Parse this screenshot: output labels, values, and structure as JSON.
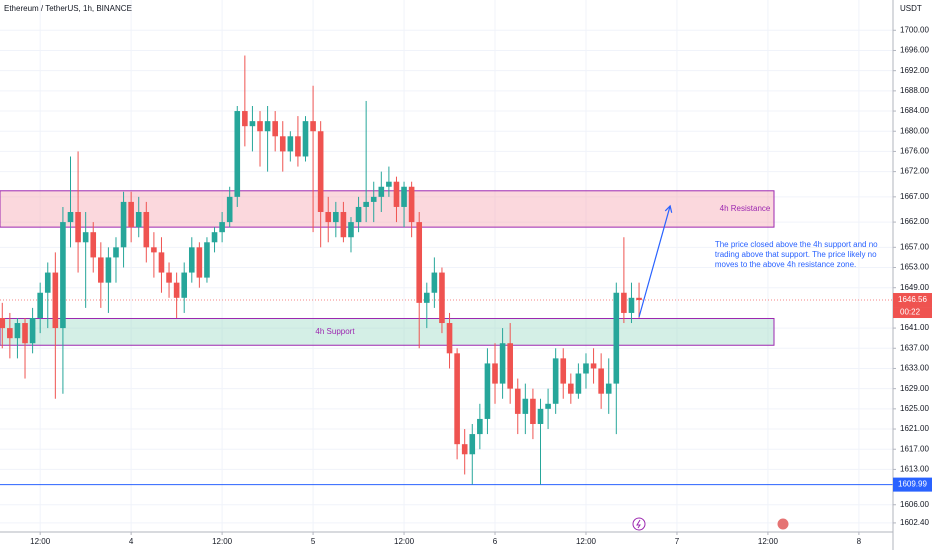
{
  "chart_data": {
    "type": "candlestick",
    "title": "Ethereum / TetherUS, 1h, BINANCE",
    "y_axis_label": "USDT",
    "up_color": "#26a69a",
    "down_color": "#ef5350",
    "grid": true,
    "open": [
      1643,
      1641,
      1639,
      1642,
      1638,
      1643,
      1648,
      1652,
      1641,
      1662,
      1664,
      1658,
      1660,
      1655,
      1650,
      1655,
      1657,
      1666,
      1661,
      1664,
      1657,
      1656,
      1652,
      1650,
      1647,
      1652,
      1657,
      1651,
      1658,
      1660,
      1662,
      1667,
      1684,
      1681,
      1682,
      1680,
      1682,
      1679,
      1676,
      1679,
      1675,
      1682,
      1680,
      1664,
      1662,
      1664,
      1659,
      1662,
      1665,
      1666,
      1667,
      1669,
      1670,
      1665,
      1669,
      1662,
      1646,
      1648,
      1652,
      1642,
      1636,
      1618,
      1616,
      1620,
      1623,
      1634,
      1630,
      1638,
      1629,
      1624,
      1627,
      1622,
      1625,
      1626,
      1635,
      1630,
      1628,
      1632,
      1634,
      1633,
      1628,
      1630,
      1648,
      1644,
      1647
    ],
    "high": [
      1646,
      1644,
      1643,
      1643,
      1645,
      1650,
      1654,
      1656,
      1665,
      1675,
      1676,
      1664,
      1662,
      1658,
      1657,
      1659,
      1668,
      1668,
      1667,
      1666,
      1660,
      1659,
      1654,
      1652,
      1654,
      1659,
      1658,
      1659,
      1661,
      1664,
      1669,
      1685,
      1695,
      1685,
      1684,
      1685,
      1684,
      1682,
      1680,
      1683,
      1683,
      1689,
      1682,
      1667,
      1666,
      1666,
      1663,
      1667,
      1686,
      1670,
      1672,
      1673,
      1671,
      1670,
      1670,
      1664,
      1650,
      1655,
      1653,
      1644,
      1637,
      1621,
      1622,
      1626,
      1637,
      1638,
      1641,
      1642,
      1631,
      1630,
      1629,
      1627,
      1629,
      1637,
      1637,
      1632,
      1634,
      1636,
      1637,
      1636,
      1635,
      1650,
      1659,
      1650,
      1650
    ],
    "low": [
      1637,
      1635,
      1635,
      1631,
      1636,
      1640,
      1641,
      1627,
      1628,
      1657,
      1652,
      1645,
      1652,
      1645,
      1644,
      1650,
      1653,
      1658,
      1659,
      1654,
      1651,
      1648,
      1647,
      1643,
      1644,
      1650,
      1649,
      1650,
      1656,
      1658,
      1661,
      1665,
      1677,
      1676,
      1673,
      1672,
      1676,
      1672,
      1674,
      1673,
      1674,
      1660,
      1657,
      1658,
      1659,
      1658,
      1656,
      1660,
      1662,
      1662,
      1664,
      1667,
      1662,
      1661,
      1659,
      1637,
      1641,
      1645,
      1640,
      1633,
      1615,
      1612,
      1610,
      1617,
      1620,
      1626,
      1627,
      1626,
      1620,
      1620,
      1619,
      1610,
      1621,
      1624,
      1627,
      1626,
      1627,
      1629,
      1630,
      1625,
      1624,
      1620,
      1642,
      1642,
      1643
    ],
    "close": [
      1641,
      1639,
      1642,
      1638,
      1643,
      1648,
      1652,
      1641,
      1662,
      1664,
      1658,
      1660,
      1655,
      1650,
      1655,
      1657,
      1666,
      1661,
      1664,
      1657,
      1656,
      1652,
      1650,
      1647,
      1652,
      1657,
      1651,
      1658,
      1660,
      1662,
      1667,
      1684,
      1681,
      1682,
      1680,
      1682,
      1679,
      1676,
      1679,
      1675,
      1682,
      1680,
      1664,
      1662,
      1664,
      1659,
      1662,
      1665,
      1666,
      1667,
      1669,
      1670,
      1665,
      1669,
      1662,
      1646,
      1648,
      1652,
      1642,
      1636,
      1618,
      1616,
      1620,
      1623,
      1634,
      1630,
      1638,
      1629,
      1624,
      1627,
      1622,
      1625,
      1626,
      1635,
      1630,
      1628,
      1632,
      1634,
      1633,
      1628,
      1630,
      1648,
      1644,
      1647,
      1646.56
    ],
    "xlim": [
      -0.3,
      117.5
    ],
    "ylim": [
      1600.6,
      1706.0
    ],
    "xticks": [
      {
        "value": 5,
        "label": "12:00"
      },
      {
        "value": 17,
        "label": "4"
      },
      {
        "value": 29,
        "label": "12:00"
      },
      {
        "value": 41,
        "label": "5"
      },
      {
        "value": 53,
        "label": "12:00"
      },
      {
        "value": 65,
        "label": "6"
      },
      {
        "value": 77,
        "label": "12:00"
      },
      {
        "value": 89,
        "label": "7"
      },
      {
        "value": 101,
        "label": "12:00"
      },
      {
        "value": 113,
        "label": "8"
      }
    ],
    "yticks": [
      {
        "value": 1700,
        "label": "1700.00"
      },
      {
        "value": 1696,
        "label": "1696.00"
      },
      {
        "value": 1692,
        "label": "1692.00"
      },
      {
        "value": 1688,
        "label": "1688.00"
      },
      {
        "value": 1684,
        "label": "1684.00"
      },
      {
        "value": 1680,
        "label": "1680.00"
      },
      {
        "value": 1676,
        "label": "1676.00"
      },
      {
        "value": 1672,
        "label": "1672.00"
      },
      {
        "value": 1667,
        "label": "1667.00"
      },
      {
        "value": 1662,
        "label": "1662.00"
      },
      {
        "value": 1657,
        "label": "1657.00"
      },
      {
        "value": 1653,
        "label": "1653.00"
      },
      {
        "value": 1649,
        "label": "1649.00"
      },
      {
        "value": 1641,
        "label": "1641.00"
      },
      {
        "value": 1637,
        "label": "1637.00"
      },
      {
        "value": 1633,
        "label": "1633.00"
      },
      {
        "value": 1629,
        "label": "1629.00"
      },
      {
        "value": 1625,
        "label": "1625.00"
      },
      {
        "value": 1621,
        "label": "1621.00"
      },
      {
        "value": 1617,
        "label": "1617.00"
      },
      {
        "value": 1613,
        "label": "1613.00"
      },
      {
        "value": 1606,
        "label": "1606.00"
      },
      {
        "value": 1602.4,
        "label": "1602.40"
      }
    ],
    "zones": [
      {
        "label": "4h Resistance",
        "from": 1661.0,
        "to": 1668.2,
        "color": "#f7a9b4",
        "text_color": "#9c27b0"
      },
      {
        "label": "4h Support",
        "from": 1637.6,
        "to": 1642.9,
        "color": "#9fdcc8",
        "text_color": "#9c27b0"
      }
    ],
    "horizontal_line": {
      "value": 1609.99,
      "color": "#2962ff"
    },
    "last_price": 1646.56,
    "countdown": "00:22",
    "arrow": {
      "x": [
        84,
        88.1
      ],
      "y": [
        1643.2,
        1665.2
      ],
      "color": "#2962ff"
    },
    "annotation": {
      "x": 94,
      "y": 1657.5,
      "color": "#2962ff",
      "lines": [
        "The price closed above the 4h support and no",
        "trading above that support. The price likely no",
        "moves to the above 4h resistance zone."
      ]
    }
  }
}
